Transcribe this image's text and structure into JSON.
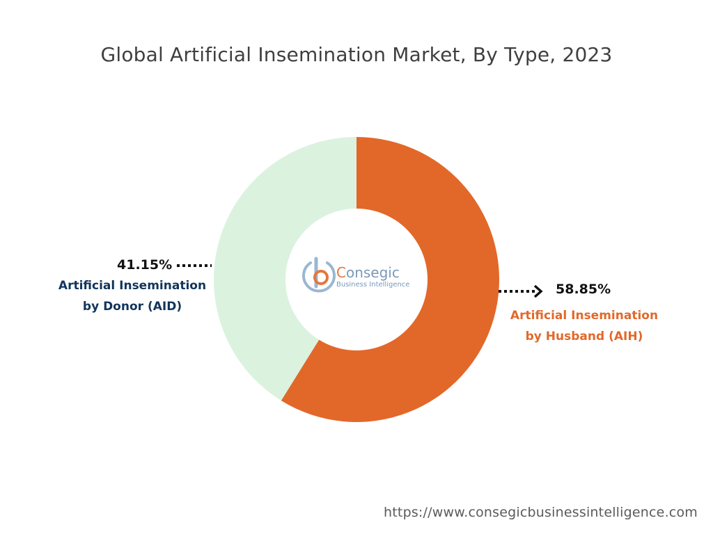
{
  "chart_data": {
    "type": "pie",
    "title": "Global Artificial Insemination Market, By Type, 2023",
    "donut": true,
    "slices": [
      {
        "label_line1": "Artificial Insemination",
        "label_line2": "by Husband (AIH)",
        "value": 58.85,
        "value_label": "58.85%",
        "color": "#e2682a"
      },
      {
        "label_line1": "Artificial Insemination",
        "label_line2": "by Donor (AID)",
        "value": 41.15,
        "value_label": "41.15%",
        "color": "#dbf2df"
      }
    ],
    "label_colors": {
      "aid": "#12355b",
      "aih": "#e2682a"
    }
  },
  "watermark": {
    "brand": "Consegic",
    "tagline": "Business Intelligence",
    "colors": {
      "brand_c": "#e2682a",
      "brand_text": "#6b8fb3",
      "ring": "#8fb0cf"
    }
  },
  "source_url": "https://www.consegicbusinessintelligence.com"
}
